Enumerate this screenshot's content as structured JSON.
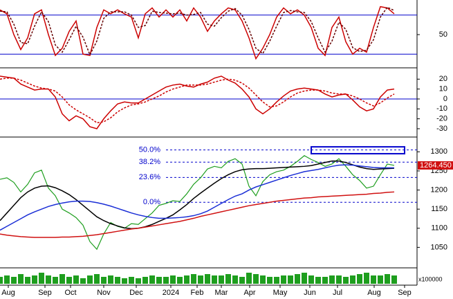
{
  "chart_data": [
    {
      "type": "line",
      "ylim": [
        0,
        100
      ],
      "yticks": [
        50
      ],
      "levels": [
        80,
        20
      ],
      "series": [
        {
          "color": "#cc0000",
          "values": [
            88,
            82,
            50,
            27,
            45,
            82,
            88,
            50,
            18,
            29,
            55,
            71,
            20,
            18,
            61,
            88,
            82,
            88,
            82,
            77,
            45,
            82,
            91,
            77,
            88,
            77,
            88,
            71,
            91,
            77,
            55,
            71,
            82,
            91,
            88,
            71,
            45,
            13,
            29,
            50,
            77,
            91,
            82,
            88,
            80,
            61,
            29,
            18,
            61,
            77,
            39,
            20,
            29,
            23,
            61,
            93,
            91,
            82
          ]
        },
        {
          "color": "#660000",
          "dash": true,
          "values": [
            86,
            85,
            66,
            38,
            36,
            63,
            85,
            70,
            34,
            23,
            42,
            63,
            46,
            19,
            40,
            75,
            85,
            85,
            85,
            80,
            61,
            64,
            86,
            84,
            83,
            82,
            83,
            80,
            81,
            84,
            66,
            63,
            76,
            86,
            90,
            80,
            58,
            29,
            21,
            40,
            63,
            84,
            87,
            85,
            84,
            70,
            45,
            23,
            40,
            69,
            58,
            30,
            24,
            26,
            42,
            77,
            92,
            87
          ]
        }
      ]
    },
    {
      "type": "line",
      "ylim": [
        -37,
        30
      ],
      "yticks": [
        20,
        10,
        0,
        -10,
        -20,
        -30
      ],
      "levels": [
        0
      ],
      "series": [
        {
          "color": "#cc0000",
          "values": [
            23,
            22,
            21,
            15,
            12,
            9,
            10,
            10,
            2,
            -15,
            -22,
            -17,
            -20,
            -28,
            -30,
            -20,
            -12,
            -5,
            -3,
            -4,
            -4,
            0,
            4,
            8,
            12,
            14,
            15,
            13,
            12,
            15,
            17,
            21,
            23,
            19,
            16,
            10,
            2,
            -10,
            -15,
            -10,
            -3,
            3,
            8,
            10,
            11,
            10,
            9,
            5,
            2,
            4,
            5,
            -1,
            -8,
            -12,
            -10,
            2,
            9,
            10
          ]
        },
        {
          "color": "#cc0000",
          "dash": true,
          "values": [
            20,
            21,
            21,
            19,
            16,
            13,
            11,
            10,
            8,
            2,
            -6,
            -11,
            -15,
            -19,
            -24,
            -23,
            -19,
            -13,
            -9,
            -6,
            -5,
            -3,
            0,
            3,
            7,
            10,
            12,
            14,
            14,
            14,
            15,
            17,
            19,
            20,
            19,
            16,
            11,
            4,
            -3,
            -8,
            -7,
            -3,
            2,
            6,
            8,
            9,
            9,
            8,
            6,
            5,
            5,
            3,
            0,
            -4,
            -7,
            -4,
            1,
            5
          ]
        }
      ]
    },
    {
      "type": "line",
      "ylim": [
        1000,
        1335
      ],
      "yticks": [
        1050,
        1100,
        1150,
        1200,
        1250,
        1300
      ],
      "fib_levels": [
        {
          "value": 1305,
          "label": "50.0%"
        },
        {
          "value": 1273,
          "label": "38.2%"
        },
        {
          "value": 1233,
          "label": "23.6%"
        },
        {
          "value": 1168,
          "label": "0.0%"
        }
      ],
      "last_price": {
        "value": 1264.45,
        "label": "1264.450"
      },
      "box": {
        "x": [
          45,
          58.5
        ],
        "y": [
          1295,
          1313
        ],
        "color": "#0000cc"
      },
      "series": [
        {
          "color": "#1e9e1e",
          "values": [
            1228,
            1232,
            1220,
            1195,
            1215,
            1245,
            1252,
            1205,
            1185,
            1150,
            1140,
            1128,
            1108,
            1065,
            1045,
            1085,
            1115,
            1105,
            1100,
            1112,
            1110,
            1125,
            1140,
            1160,
            1165,
            1172,
            1170,
            1190,
            1215,
            1232,
            1255,
            1262,
            1258,
            1275,
            1282,
            1268,
            1210,
            1185,
            1222,
            1240,
            1248,
            1252,
            1262,
            1275,
            1290,
            1280,
            1272,
            1262,
            1268,
            1282,
            1262,
            1240,
            1225,
            1205,
            1210,
            1240,
            1268,
            1264.45
          ]
        },
        {
          "color": "#000000",
          "values": [
            1120,
            1140,
            1160,
            1180,
            1195,
            1205,
            1210,
            1211,
            1206,
            1198,
            1188,
            1175,
            1160,
            1145,
            1130,
            1120,
            1112,
            1106,
            1101,
            1099,
            1100,
            1104,
            1110,
            1118,
            1126,
            1135,
            1148,
            1162,
            1178,
            1192,
            1205,
            1218,
            1230,
            1240,
            1248,
            1253,
            1255,
            1256,
            1256,
            1257,
            1258,
            1259,
            1260,
            1261,
            1262,
            1264,
            1268,
            1272,
            1276,
            1276,
            1272,
            1266,
            1260,
            1256,
            1254,
            1255,
            1256,
            1257
          ]
        },
        {
          "color": "#1a2ed6",
          "values": [
            1095,
            1105,
            1115,
            1125,
            1135,
            1143,
            1150,
            1157,
            1162,
            1166,
            1169,
            1171,
            1171,
            1170,
            1167,
            1163,
            1158,
            1152,
            1146,
            1140,
            1135,
            1131,
            1128,
            1126,
            1126,
            1127,
            1128,
            1130,
            1133,
            1138,
            1145,
            1155,
            1165,
            1175,
            1184,
            1190,
            1200,
            1208,
            1214,
            1220,
            1226,
            1232,
            1238,
            1243,
            1248,
            1251,
            1254,
            1258,
            1262,
            1265,
            1266,
            1265,
            1263,
            1261,
            1259,
            1258,
            1258,
            1258
          ]
        },
        {
          "color": "#d01010",
          "values": [
            1085,
            1082,
            1080,
            1078,
            1077,
            1076,
            1076,
            1076,
            1076,
            1077,
            1077,
            1078,
            1079,
            1081,
            1083,
            1086,
            1089,
            1092,
            1095,
            1098,
            1100,
            1103,
            1106,
            1109,
            1112,
            1115,
            1118,
            1122,
            1126,
            1131,
            1135,
            1139,
            1143,
            1147,
            1151,
            1155,
            1159,
            1162,
            1165,
            1168,
            1171,
            1173,
            1175,
            1177,
            1179,
            1180,
            1182,
            1183,
            1184,
            1185,
            1186,
            1187,
            1188,
            1189,
            1191,
            1192,
            1194,
            1195
          ]
        }
      ]
    },
    {
      "type": "bar",
      "ylim": [
        0,
        10
      ],
      "unit_label": "x100000",
      "color": "#1e9e1e",
      "values": [
        5,
        6,
        5,
        7,
        5,
        6,
        8,
        6,
        5,
        7,
        5,
        6,
        4,
        6,
        7,
        5,
        6,
        5,
        4,
        5,
        4,
        5,
        6,
        5,
        5,
        6,
        5,
        6,
        7,
        6,
        7,
        6,
        6,
        7,
        6,
        5,
        8,
        7,
        6,
        5,
        5,
        6,
        6,
        7,
        8,
        6,
        5,
        5,
        6,
        6,
        5,
        6,
        7,
        8,
        6,
        6,
        7,
        6
      ],
      "xlim": [
        0,
        60.3
      ],
      "xticks": [
        {
          "value": 1.2,
          "label": "Aug"
        },
        {
          "value": 6.5,
          "label": "Sep"
        },
        {
          "value": 10.2,
          "label": "Oct"
        },
        {
          "value": 15,
          "label": "Nov"
        },
        {
          "value": 19.7,
          "label": "Dec"
        },
        {
          "value": 24.7,
          "label": "2024"
        },
        {
          "value": 28.5,
          "label": "Feb"
        },
        {
          "value": 32,
          "label": "Mar"
        },
        {
          "value": 36.1,
          "label": "Apr"
        },
        {
          "value": 40.5,
          "label": "May"
        },
        {
          "value": 44.8,
          "label": "Jun"
        },
        {
          "value": 48.8,
          "label": "Jul"
        },
        {
          "value": 54.1,
          "label": "Aug"
        },
        {
          "value": 58.5,
          "label": "Sep"
        }
      ]
    }
  ]
}
